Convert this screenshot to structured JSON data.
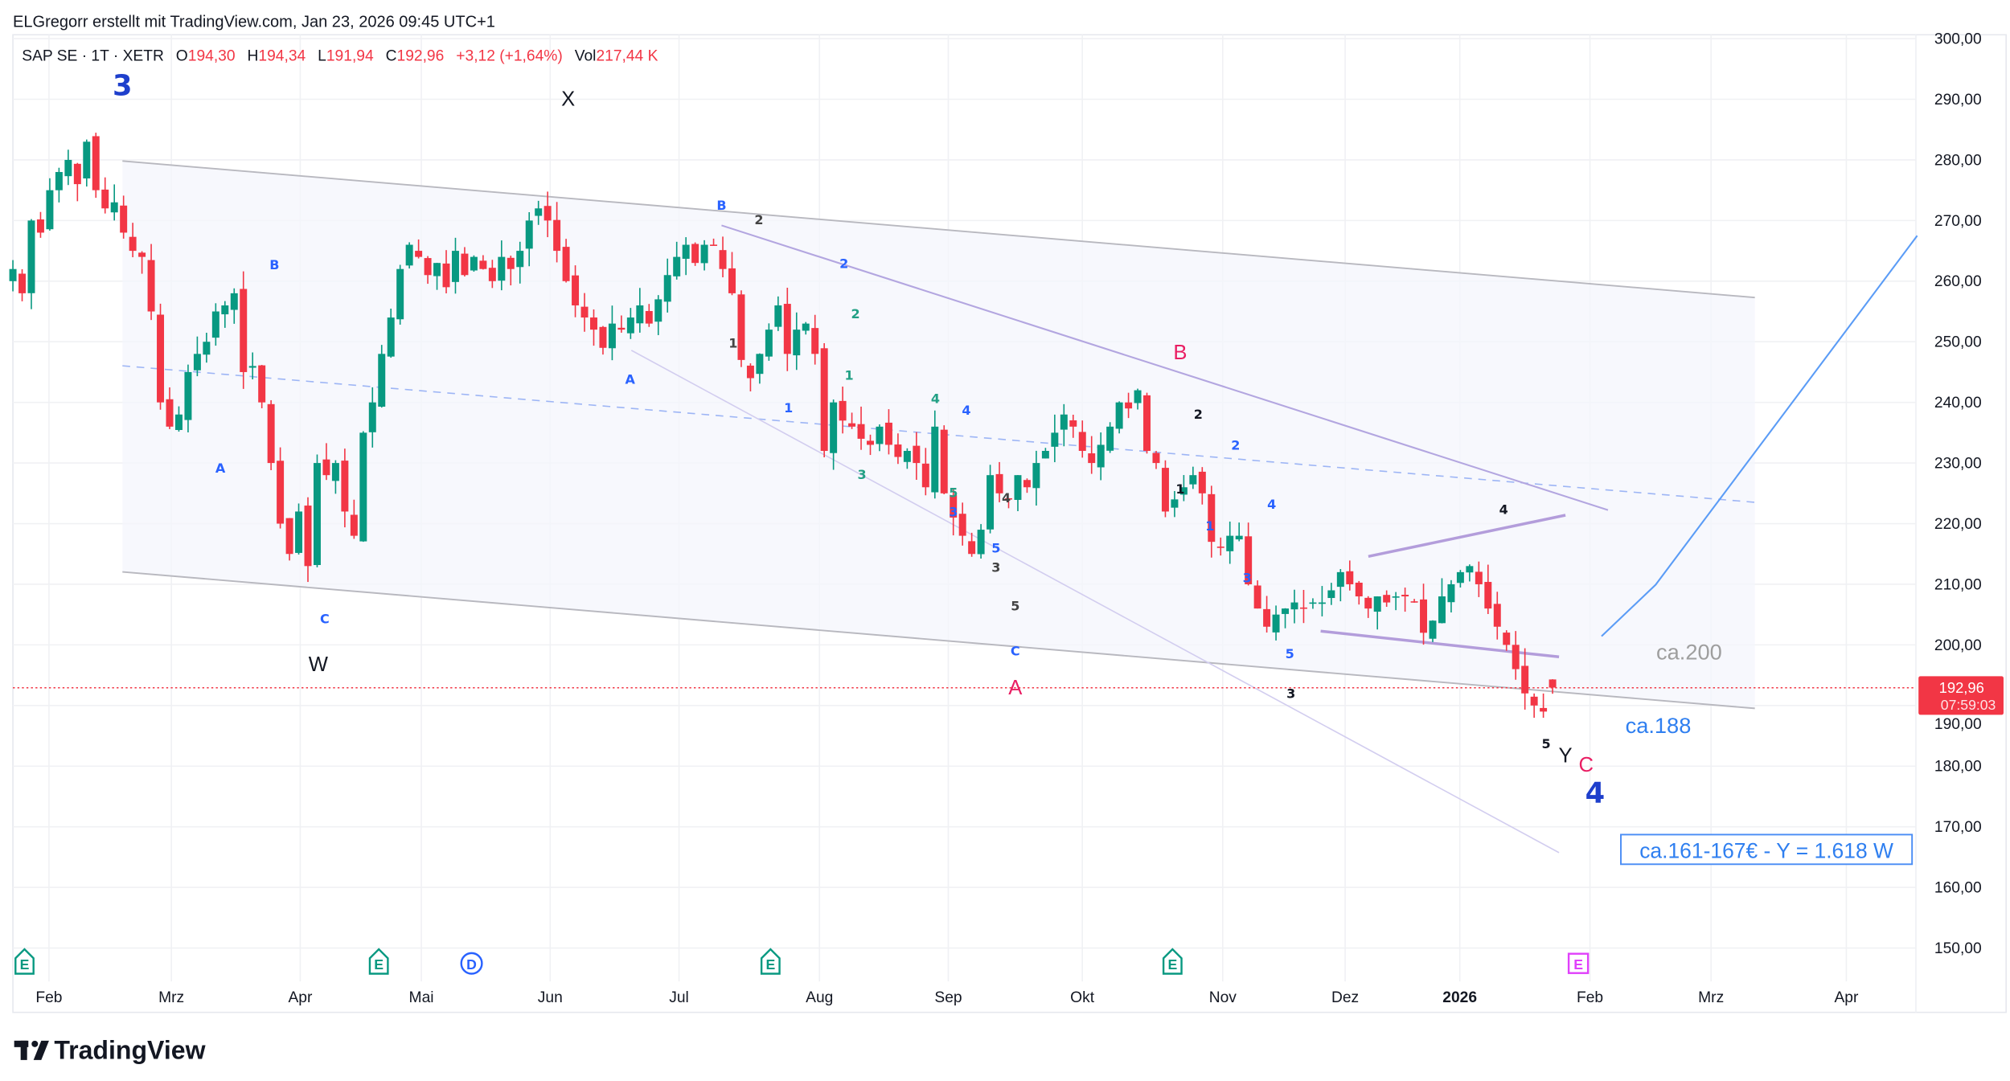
{
  "header": {
    "attribution": "ELGregorr erstellt mit TradingView.com, Jan 23, 2026 09:45 UTC+1"
  },
  "legend": {
    "symbol": "SAP SE · 1T · XETR",
    "o_label": "O",
    "o_value": "194,30",
    "h_label": "H",
    "h_value": "194,34",
    "l_label": "L",
    "l_value": "191,94",
    "c_label": "C",
    "c_value": "192,96",
    "change": "+3,12 (+1,64%)",
    "vol_label": "Vol",
    "vol_value": "217,44 K"
  },
  "price_tag": {
    "price": "192,96",
    "countdown": "07:59:03"
  },
  "colors": {
    "up": "#089981",
    "down": "#f23645",
    "wave_blue": "#2962ff",
    "wave_pink": "#e91e63",
    "navy": "#1e3fcc"
  },
  "annotations": {
    "wave3": "3",
    "x": "X",
    "w": "W",
    "a1": "A",
    "b1": "B",
    "c1": "C",
    "a2": "A",
    "b2": "B",
    "n2_gray": "2",
    "n2_blue": "2",
    "n1_gray": "1",
    "n1_blue": "1",
    "n2_green": "2",
    "n1_green": "1",
    "n3_green": "3",
    "n4_green": "4",
    "n4_blue": "4",
    "n5_green": "5",
    "n3_blue": "3",
    "n4_gray": "4",
    "n5_blue": "5",
    "n3_gray": "3",
    "n5_gray": "5",
    "c2": "C",
    "a_big": "A",
    "b_big": "B",
    "n2_black": "2",
    "n1_black": "1",
    "n2b_blue": "2",
    "n1b_blue": "1",
    "n4b_blue": "4",
    "n3b_blue": "3",
    "n5b_blue": "5",
    "n3_black": "3",
    "n4_black": "4",
    "n5_black": "5",
    "y": "Y",
    "c_big": "C",
    "wave4": "4",
    "target200": "ca.200",
    "target188": "ca.188",
    "target_box": "ca.161-167€ -  Y = 1.618 W"
  },
  "events": [
    {
      "type": "E",
      "kind": "earnings"
    },
    {
      "type": "E",
      "kind": "earnings"
    },
    {
      "type": "D",
      "kind": "dividend"
    },
    {
      "type": "E",
      "kind": "earnings"
    },
    {
      "type": "E",
      "kind": "earnings"
    },
    {
      "type": "E",
      "kind": "earnings-upcoming"
    }
  ],
  "logo": {
    "text": "TradingView"
  },
  "chart_data": {
    "type": "candlestick",
    "title": "SAP SE · 1T · XETR",
    "currency_unit": "EUR",
    "ylim": [
      150,
      300
    ],
    "y_ticks": [
      "300,00",
      "290,00",
      "280,00",
      "270,00",
      "260,00",
      "250,00",
      "240,00",
      "230,00",
      "220,00",
      "210,00",
      "200,00",
      "190,00",
      "180,00",
      "170,00",
      "160,00",
      "150,00"
    ],
    "x_ticks": [
      "Feb",
      "Mrz",
      "Apr",
      "Mai",
      "Jun",
      "Jul",
      "Aug",
      "Sep",
      "Okt",
      "Nov",
      "Dez",
      "2026",
      "Feb",
      "Mrz",
      "Apr"
    ],
    "period": "2025-01-27 to 2026-01-23",
    "closes_approx": [
      262,
      258,
      270,
      268,
      275,
      278,
      280,
      276,
      283,
      275,
      272,
      273,
      268,
      265,
      264,
      255,
      240,
      236,
      238,
      245,
      248,
      250,
      255,
      256,
      258,
      245,
      246,
      240,
      230,
      220,
      215,
      222,
      213,
      230,
      228,
      230,
      222,
      218,
      235,
      240,
      248,
      254,
      262,
      266,
      264,
      261,
      263,
      259,
      265,
      261,
      264,
      262,
      260,
      264,
      262,
      265,
      270,
      272,
      270,
      265,
      260,
      256,
      254,
      252,
      249,
      253,
      252,
      254,
      256,
      253,
      257,
      261,
      264,
      266,
      263,
      266,
      266,
      262,
      258,
      247,
      244,
      248,
      252,
      256,
      248,
      252,
      253,
      248,
      232,
      240,
      237,
      236,
      234,
      233,
      236,
      233,
      231,
      232,
      230,
      226,
      236,
      225,
      221,
      218,
      215,
      219,
      228,
      225,
      224,
      228,
      226,
      230,
      232,
      235,
      238,
      236,
      232,
      230,
      233,
      236,
      240,
      239,
      242,
      232,
      230,
      222,
      224,
      226,
      228,
      225,
      217,
      216,
      218,
      218,
      210,
      206,
      203,
      205,
      206,
      207,
      206,
      207,
      207,
      209,
      212,
      210,
      208,
      206,
      208,
      207,
      208,
      208,
      207,
      202,
      204,
      208,
      210,
      212,
      213,
      210,
      206,
      203,
      200,
      196,
      192,
      190,
      189,
      192.96
    ],
    "last": {
      "open": 194.3,
      "high": 194.34,
      "low": 191.94,
      "close": 192.96,
      "change": 3.12,
      "change_pct": 1.64,
      "volume": "217,44 K"
    }
  }
}
